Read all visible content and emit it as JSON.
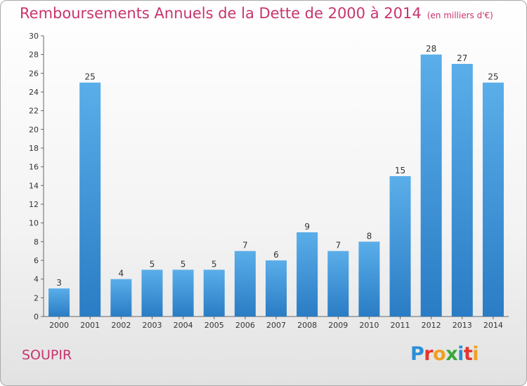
{
  "header": {
    "title": "Remboursements Annuels de la Dette de 2000 à 2014",
    "subtitle": "(en milliers d'€)"
  },
  "footer": {
    "commune": "SOUPIR",
    "logo": [
      "P",
      "r",
      "o",
      "x",
      "i",
      "t",
      "i"
    ],
    "logo_colors": [
      "#2a8fd6",
      "#e8342c",
      "#f0a020",
      "#3aa83a",
      "#2a8fd6",
      "#e8342c",
      "#f0a020"
    ]
  },
  "colors": {
    "bar_light": "#5aaee9",
    "bar_dark": "#2a7cc4",
    "title": "#c8346e"
  },
  "chart_data": {
    "type": "bar",
    "title": "Remboursements Annuels de la Dette de 2000 à 2014",
    "xlabel": "",
    "ylabel": "",
    "categories": [
      "2000",
      "2001",
      "2002",
      "2003",
      "2004",
      "2005",
      "2006",
      "2007",
      "2008",
      "2009",
      "2010",
      "2011",
      "2012",
      "2013",
      "2014"
    ],
    "values": [
      3,
      25,
      4,
      5,
      5,
      5,
      7,
      6,
      9,
      7,
      8,
      15,
      28,
      27,
      25
    ],
    "ylim": [
      0,
      30
    ],
    "yticks": [
      0,
      2,
      4,
      6,
      8,
      10,
      12,
      14,
      16,
      18,
      20,
      22,
      24,
      26,
      28,
      30
    ],
    "grid": false,
    "legend": "none"
  }
}
